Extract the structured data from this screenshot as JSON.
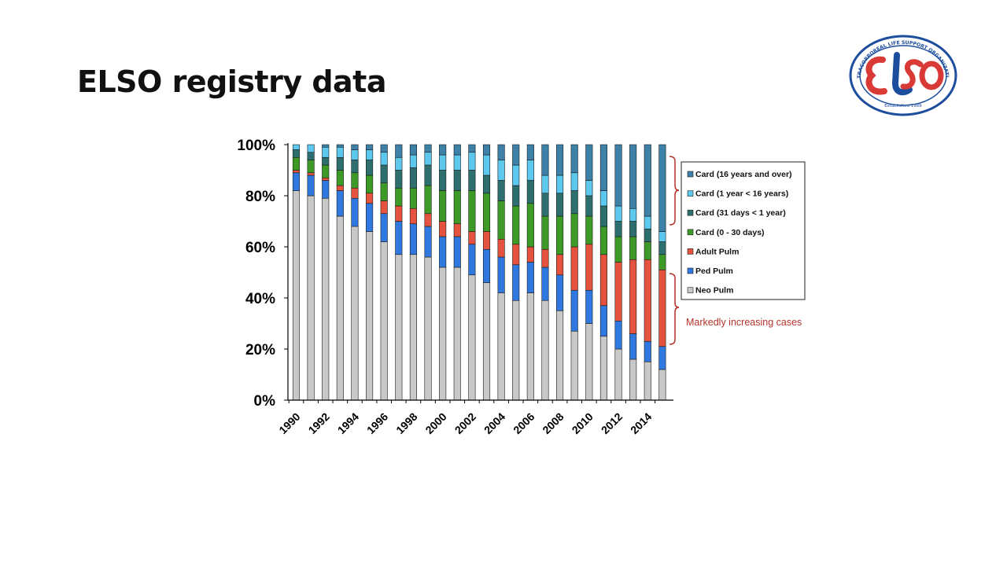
{
  "slide": {
    "title": "ELSO registry data"
  },
  "logo": {
    "ring_text": "EXTRACORPOREAL LIFE SUPPORT ORGANIZATION",
    "mark": "ELSO",
    "established": "Established 1989",
    "colors": {
      "red": "#d93a36",
      "blue": "#1d4e9e"
    }
  },
  "chart_data": {
    "type": "bar",
    "stacked": true,
    "title": "",
    "xlabel": "",
    "ylabel": "",
    "ylim": [
      0,
      100
    ],
    "y_ticks": [
      "0%",
      "20%",
      "40%",
      "60%",
      "80%",
      "100%"
    ],
    "x_tick_labels": [
      "1990",
      "1992",
      "1994",
      "1996",
      "1998",
      "2000",
      "2002",
      "2004",
      "2006",
      "2008",
      "2010",
      "2012",
      "2014"
    ],
    "categories": [
      "1990",
      "1991",
      "1992",
      "1993",
      "1994",
      "1995",
      "1996",
      "1997",
      "1998",
      "1999",
      "2000",
      "2001",
      "2002",
      "2003",
      "2004",
      "2005",
      "2006",
      "2007",
      "2008",
      "2009",
      "2010",
      "2011",
      "2012",
      "2013",
      "2014",
      "2015"
    ],
    "series": [
      {
        "name": "Neo Pulm",
        "color": "#c8c8c8",
        "values": [
          82,
          80,
          79,
          72,
          68,
          66,
          62,
          57,
          57,
          56,
          52,
          52,
          49,
          46,
          42,
          39,
          42,
          39,
          35,
          27,
          30,
          25,
          20,
          16,
          15,
          12
        ]
      },
      {
        "name": "Ped Pulm",
        "color": "#2f78e0",
        "values": [
          7,
          8,
          7,
          10,
          11,
          11,
          11,
          13,
          12,
          12,
          12,
          12,
          12,
          13,
          14,
          14,
          12,
          13,
          14,
          16,
          13,
          12,
          11,
          10,
          8,
          9
        ]
      },
      {
        "name": "Adult Pulm",
        "color": "#e5533f",
        "values": [
          1,
          1,
          1,
          2,
          4,
          4,
          5,
          6,
          6,
          5,
          6,
          5,
          5,
          7,
          7,
          8,
          6,
          7,
          8,
          17,
          18,
          20,
          23,
          29,
          32,
          30
        ]
      },
      {
        "name": "Card (0 - 30 days)",
        "color": "#3d9a26",
        "values": [
          5,
          5,
          5,
          6,
          6,
          7,
          7,
          7,
          8,
          11,
          12,
          13,
          16,
          15,
          15,
          15,
          17,
          13,
          15,
          13,
          11,
          11,
          10,
          9,
          7,
          6
        ]
      },
      {
        "name": "Card (31 days < 1 year)",
        "color": "#2d6e6e",
        "values": [
          3,
          3,
          3,
          5,
          5,
          6,
          7,
          7,
          8,
          8,
          8,
          8,
          8,
          7,
          8,
          8,
          9,
          9,
          9,
          9,
          8,
          8,
          6,
          6,
          5,
          5
        ]
      },
      {
        "name": "Card (1 year < 16 years)",
        "color": "#5cc8ee",
        "values": [
          2,
          3,
          4,
          4,
          4,
          4,
          5,
          5,
          5,
          5,
          6,
          6,
          7,
          8,
          8,
          8,
          8,
          7,
          7,
          7,
          6,
          6,
          6,
          5,
          5,
          4
        ]
      },
      {
        "name": "Card (16 years and over)",
        "color": "#3d80a8",
        "values": [
          0,
          0,
          1,
          1,
          2,
          2,
          3,
          5,
          4,
          3,
          4,
          4,
          3,
          4,
          6,
          8,
          6,
          12,
          12,
          11,
          14,
          18,
          24,
          25,
          28,
          34
        ]
      }
    ],
    "legend_position": "right",
    "annotations": [
      {
        "text": "Markedly increasing cases",
        "color": "#b5332b"
      }
    ]
  }
}
